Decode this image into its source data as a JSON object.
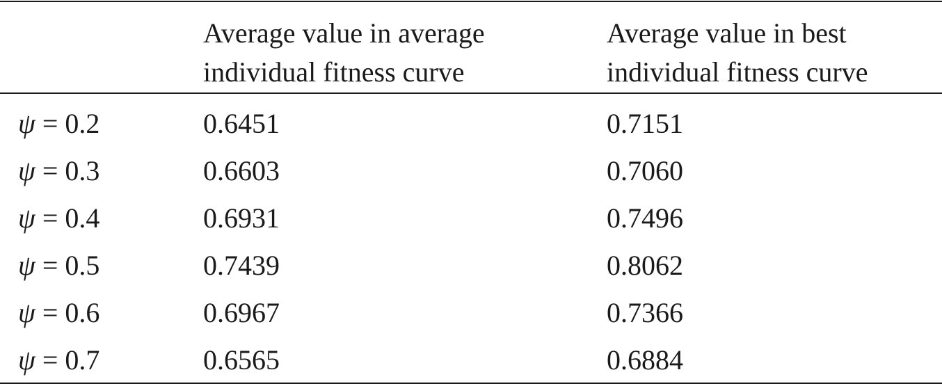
{
  "table": {
    "columns": [
      "",
      "Average value in average individual fitness curve",
      "Average value in best individual fitness curve"
    ],
    "header_lines": {
      "col1": [
        "Average value in average",
        "individual fitness curve"
      ],
      "col2": [
        "Average value in best",
        "individual fitness curve"
      ]
    },
    "symbol": "ψ",
    "rows": [
      {
        "label": "= 0.2",
        "avg": "0.6451",
        "best": "0.7151"
      },
      {
        "label": "= 0.3",
        "avg": "0.6603",
        "best": "0.7060"
      },
      {
        "label": "= 0.4",
        "avg": "0.6931",
        "best": "0.7496"
      },
      {
        "label": "= 0.5",
        "avg": "0.7439",
        "best": "0.8062"
      },
      {
        "label": "= 0.6",
        "avg": "0.6967",
        "best": "0.7366"
      },
      {
        "label": "= 0.7",
        "avg": "0.6565",
        "best": "0.6884"
      }
    ]
  }
}
